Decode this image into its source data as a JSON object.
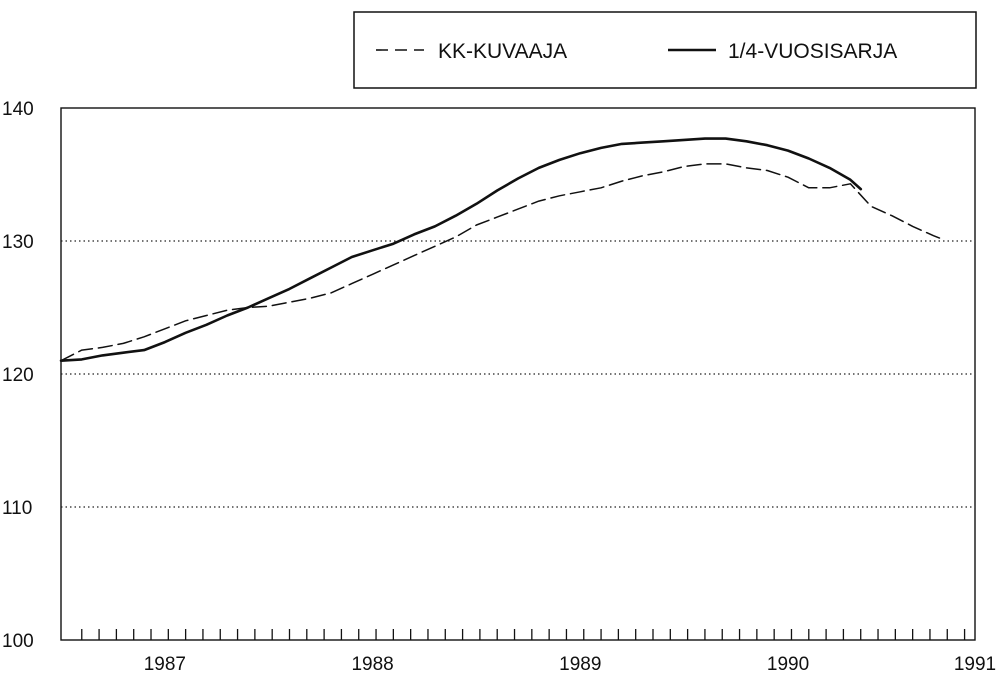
{
  "chart_data": {
    "type": "line",
    "title": "",
    "xlabel": "",
    "ylabel": "",
    "xlim": [
      1986.6,
      1991.0
    ],
    "ylim": [
      100,
      140
    ],
    "x_ticks": [
      {
        "value": 1987.1,
        "label": "1987"
      },
      {
        "value": 1988.1,
        "label": "1988"
      },
      {
        "value": 1989.1,
        "label": "1989"
      },
      {
        "value": 1990.1,
        "label": "1990"
      },
      {
        "value": 1991.0,
        "label": "1991"
      }
    ],
    "y_ticks": [
      {
        "value": 100,
        "label": "100"
      },
      {
        "value": 110,
        "label": "110"
      },
      {
        "value": 120,
        "label": "120"
      },
      {
        "value": 130,
        "label": "130"
      },
      {
        "value": 140,
        "label": "140"
      }
    ],
    "gridlines_y": [
      110,
      120,
      130
    ],
    "grid_style": "dotted horizontal",
    "minor_x_ticks": {
      "start": 1986.7,
      "end": 1991.0,
      "step": 0.08333
    },
    "legend_position": "top-right, boxed",
    "series": [
      {
        "name": "KK-KUVAAJA",
        "style": "dashed",
        "color": "#111111",
        "points": [
          [
            1986.6,
            121.0
          ],
          [
            1986.7,
            121.8
          ],
          [
            1986.8,
            122.0
          ],
          [
            1986.9,
            122.3
          ],
          [
            1987.0,
            122.8
          ],
          [
            1987.1,
            123.4
          ],
          [
            1987.2,
            124.0
          ],
          [
            1987.3,
            124.4
          ],
          [
            1987.4,
            124.8
          ],
          [
            1987.5,
            125.0
          ],
          [
            1987.6,
            125.1
          ],
          [
            1987.7,
            125.4
          ],
          [
            1987.8,
            125.7
          ],
          [
            1987.9,
            126.1
          ],
          [
            1988.0,
            126.8
          ],
          [
            1988.1,
            127.5
          ],
          [
            1988.2,
            128.2
          ],
          [
            1988.3,
            128.9
          ],
          [
            1988.4,
            129.6
          ],
          [
            1988.5,
            130.3
          ],
          [
            1988.6,
            131.2
          ],
          [
            1988.7,
            131.8
          ],
          [
            1988.8,
            132.4
          ],
          [
            1988.9,
            133.0
          ],
          [
            1989.0,
            133.4
          ],
          [
            1989.1,
            133.7
          ],
          [
            1989.2,
            134.0
          ],
          [
            1989.3,
            134.5
          ],
          [
            1989.4,
            134.9
          ],
          [
            1989.5,
            135.2
          ],
          [
            1989.6,
            135.6
          ],
          [
            1989.7,
            135.8
          ],
          [
            1989.8,
            135.8
          ],
          [
            1989.9,
            135.5
          ],
          [
            1990.0,
            135.3
          ],
          [
            1990.1,
            134.8
          ],
          [
            1990.2,
            134.0
          ],
          [
            1990.3,
            134.0
          ],
          [
            1990.4,
            134.3
          ],
          [
            1990.5,
            132.6
          ],
          [
            1990.6,
            131.9
          ],
          [
            1990.7,
            131.1
          ],
          [
            1990.8,
            130.4
          ],
          [
            1990.85,
            130.1
          ]
        ]
      },
      {
        "name": "1/4-VUOSISARJA",
        "style": "solid",
        "color": "#111111",
        "points": [
          [
            1986.6,
            121.0
          ],
          [
            1986.7,
            121.1
          ],
          [
            1986.8,
            121.4
          ],
          [
            1986.9,
            121.6
          ],
          [
            1987.0,
            121.8
          ],
          [
            1987.1,
            122.4
          ],
          [
            1987.2,
            123.1
          ],
          [
            1987.3,
            123.7
          ],
          [
            1987.4,
            124.4
          ],
          [
            1987.5,
            125.0
          ],
          [
            1987.6,
            125.7
          ],
          [
            1987.7,
            126.4
          ],
          [
            1987.8,
            127.2
          ],
          [
            1987.9,
            128.0
          ],
          [
            1988.0,
            128.8
          ],
          [
            1988.1,
            129.3
          ],
          [
            1988.2,
            129.8
          ],
          [
            1988.3,
            130.5
          ],
          [
            1988.4,
            131.1
          ],
          [
            1988.5,
            131.9
          ],
          [
            1988.6,
            132.8
          ],
          [
            1988.7,
            133.8
          ],
          [
            1988.8,
            134.7
          ],
          [
            1988.9,
            135.5
          ],
          [
            1989.0,
            136.1
          ],
          [
            1989.1,
            136.6
          ],
          [
            1989.2,
            137.0
          ],
          [
            1989.3,
            137.3
          ],
          [
            1989.4,
            137.4
          ],
          [
            1989.5,
            137.5
          ],
          [
            1989.6,
            137.6
          ],
          [
            1989.7,
            137.7
          ],
          [
            1989.8,
            137.7
          ],
          [
            1989.9,
            137.5
          ],
          [
            1990.0,
            137.2
          ],
          [
            1990.1,
            136.8
          ],
          [
            1990.2,
            136.2
          ],
          [
            1990.3,
            135.5
          ],
          [
            1990.4,
            134.6
          ],
          [
            1990.45,
            133.9
          ]
        ]
      }
    ]
  }
}
